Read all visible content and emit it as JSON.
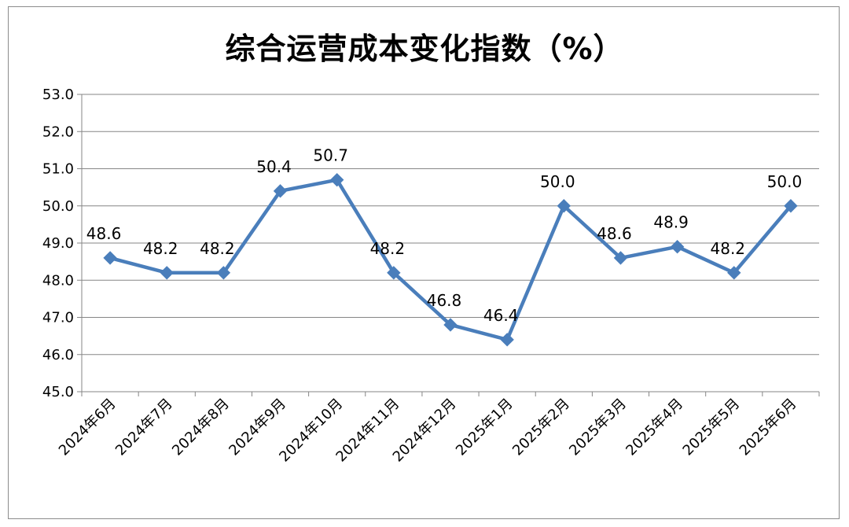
{
  "chart_data": {
    "type": "line",
    "title": "综合运营成本变化指数（%）",
    "categories": [
      "2024年6月",
      "2024年7月",
      "2024年8月",
      "2024年9月",
      "2024年10月",
      "2024年11月",
      "2024年12月",
      "2025年1月",
      "2025年2月",
      "2025年3月",
      "2025年4月",
      "2025年5月",
      "2025年6月"
    ],
    "values": [
      48.6,
      48.2,
      48.2,
      50.4,
      50.7,
      48.2,
      46.8,
      46.4,
      50.0,
      48.6,
      48.9,
      48.2,
      50.0
    ],
    "data_labels": [
      "48.6",
      "48.2",
      "48.2",
      "50.4",
      "50.7",
      "48.2",
      "46.8",
      "46.4",
      "50.0",
      "48.6",
      "48.9",
      "48.2",
      "50.0"
    ],
    "y_ticks": [
      "45.0",
      "46.0",
      "47.0",
      "48.0",
      "49.0",
      "50.0",
      "51.0",
      "52.0",
      "53.0"
    ],
    "ylim": [
      45.0,
      53.0
    ],
    "grid": "horizontal",
    "legend": "none",
    "marker": "diamond",
    "line_color": "#4a7ebb",
    "grid_color": "#868686"
  }
}
